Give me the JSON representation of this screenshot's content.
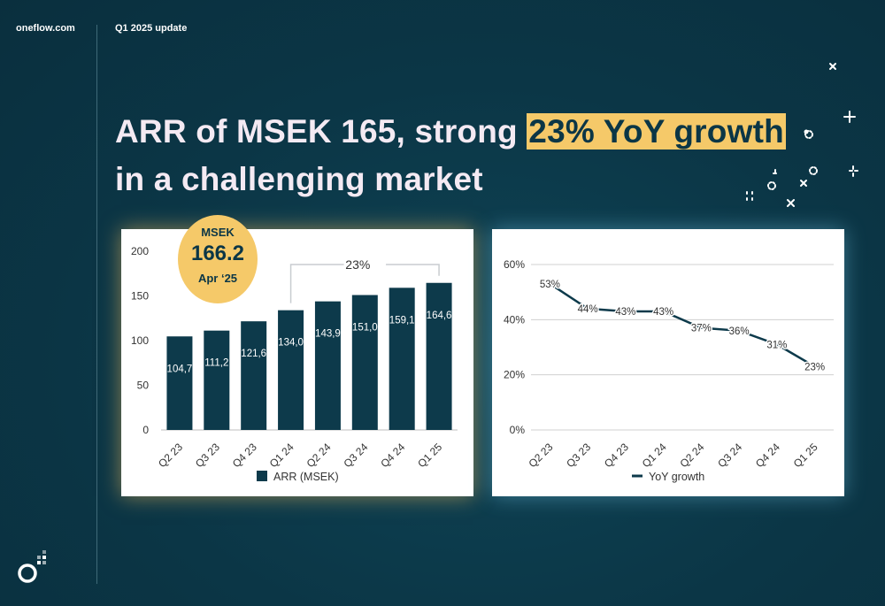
{
  "header": {
    "brand": "oneflow.com",
    "doc_label": "Q1 2025 update"
  },
  "headline": {
    "part1": "ARR of MSEK 165, strong ",
    "highlight": "23% YoY growth",
    "part2": "in a challenging market"
  },
  "badge": {
    "unit": "MSEK",
    "value": "166.2",
    "date": "Apr ‘25"
  },
  "colors": {
    "background": "#0b3646",
    "highlight": "#f5c969",
    "bar": "#0d3a4b",
    "text_light": "#f4eaf3"
  },
  "chart_data": [
    {
      "type": "bar",
      "categories": [
        "Q2 23",
        "Q3 23",
        "Q4 23",
        "Q1 24",
        "Q2 24",
        "Q3 24",
        "Q4 24",
        "Q1 25"
      ],
      "values": [
        104.7,
        111.2,
        121.6,
        134.0,
        143.9,
        151.0,
        159.1,
        164.6
      ],
      "value_labels": [
        "104,7",
        "111,2",
        "121,6",
        "134,0",
        "143,9",
        "151,0",
        "159,1",
        "164,6"
      ],
      "ylim": [
        0,
        200
      ],
      "yticks": [
        "0",
        "50",
        "100",
        "150",
        "200"
      ],
      "ytick_values": [
        0,
        50,
        100,
        150,
        200
      ],
      "legend": "ARR (MSEK)",
      "legend_position": "bottom",
      "annotation": "23%",
      "grid": false
    },
    {
      "type": "line",
      "categories": [
        "Q2 23",
        "Q3 23",
        "Q4 23",
        "Q1 24",
        "Q2 24",
        "Q3 24",
        "Q4 24",
        "Q1 25"
      ],
      "values": [
        53,
        44,
        43,
        43,
        37,
        36,
        31,
        23
      ],
      "value_labels": [
        "53%",
        "44%",
        "43%",
        "43%",
        "37%",
        "36%",
        "31%",
        "23%"
      ],
      "ylim": [
        0,
        60
      ],
      "yticks": [
        "0%",
        "20%",
        "40%",
        "60%"
      ],
      "ytick_values": [
        0,
        20,
        40,
        60
      ],
      "legend": "YoY growth",
      "legend_position": "bottom",
      "grid": true
    }
  ]
}
